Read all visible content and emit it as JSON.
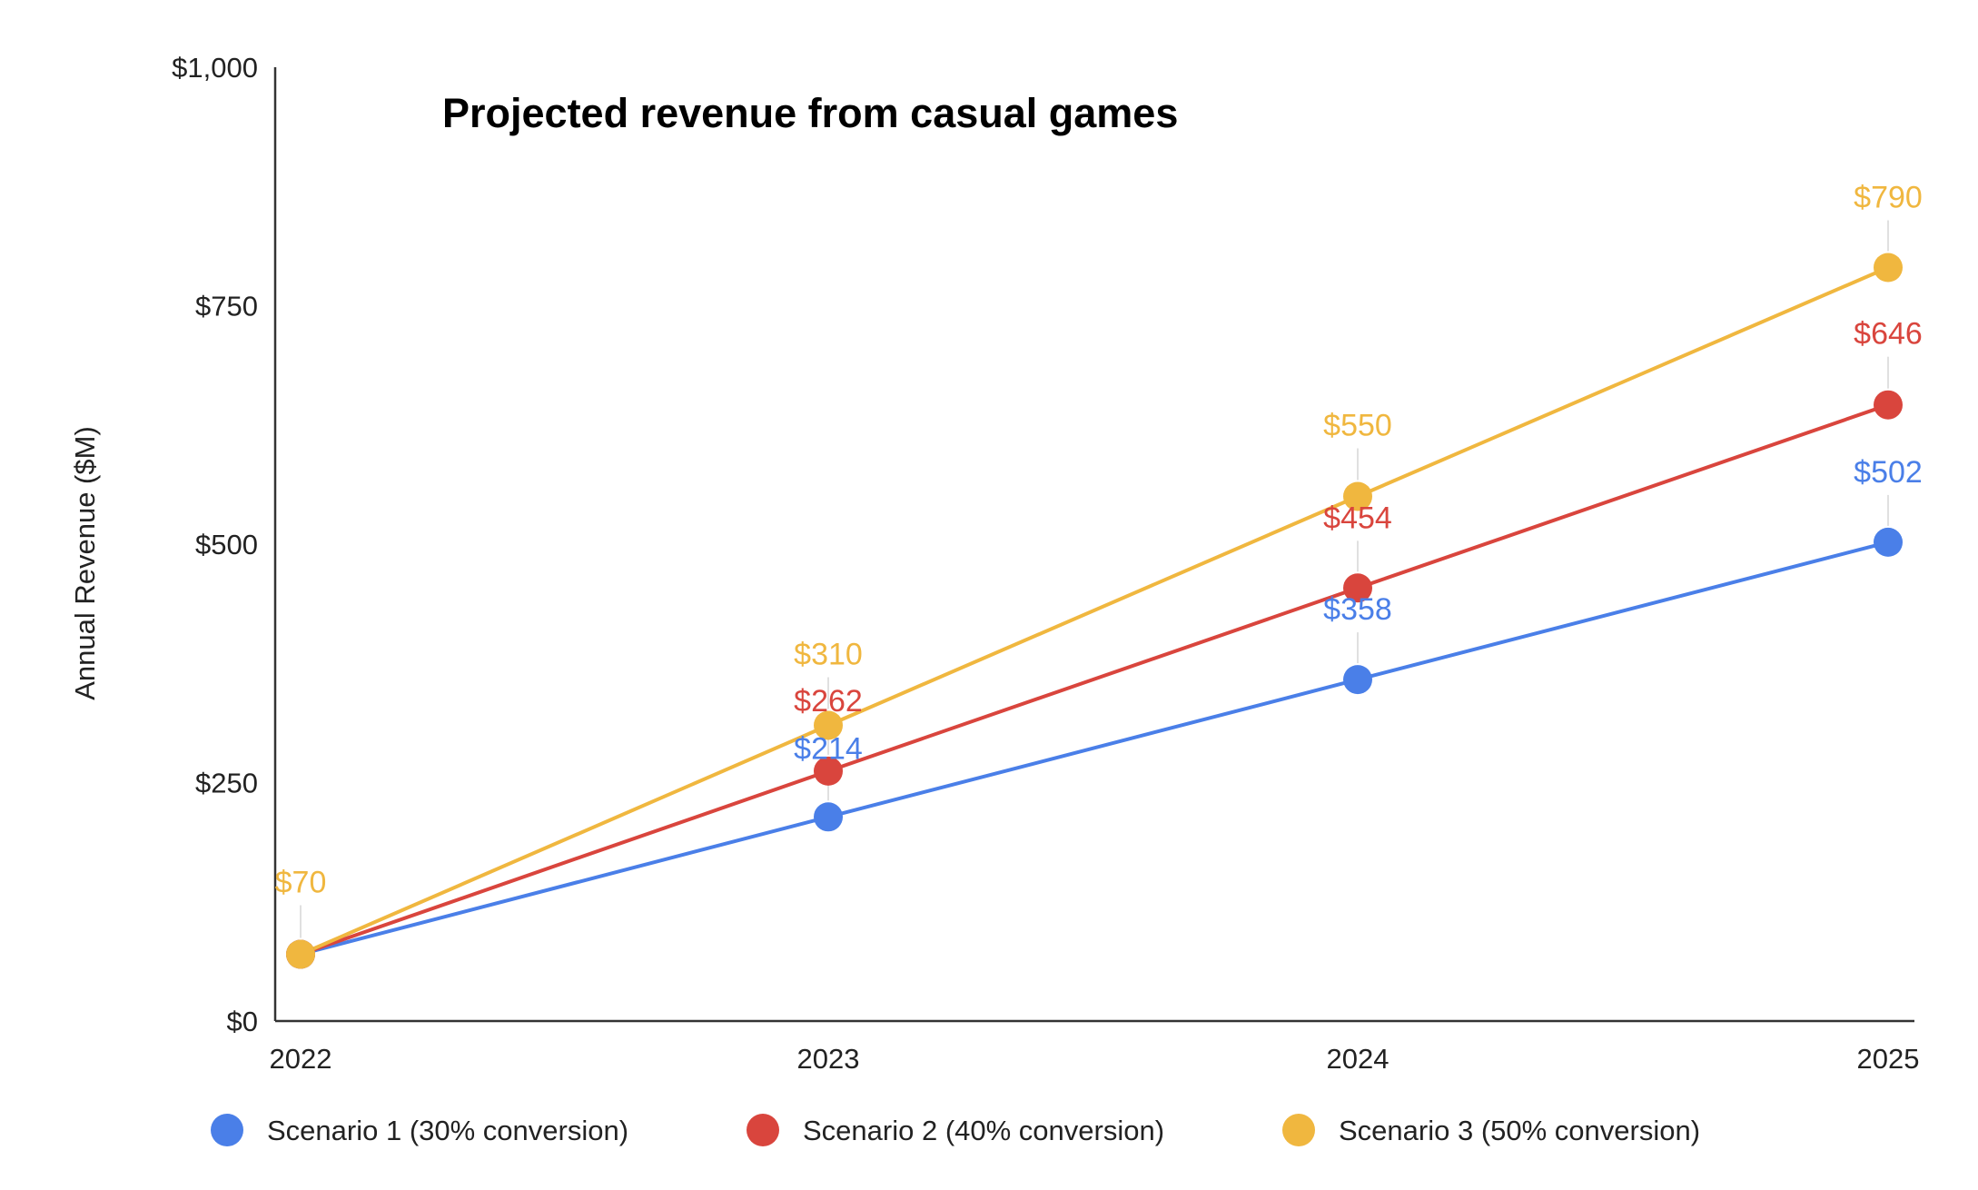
{
  "chart_data": {
    "type": "line",
    "title": "Projected revenue from casual games",
    "xlabel": "",
    "ylabel": "Annual Revenue ($M)",
    "x": [
      "2022",
      "2023",
      "2024",
      "2025"
    ],
    "ylim": [
      0,
      1000
    ],
    "yticks": [
      {
        "value": 0,
        "label": "$0"
      },
      {
        "value": 250,
        "label": "$250"
      },
      {
        "value": 500,
        "label": "$500"
      },
      {
        "value": 750,
        "label": "$750"
      },
      {
        "value": 1000,
        "label": "$1,000"
      }
    ],
    "grid": false,
    "legend_position": "bottom",
    "series": [
      {
        "name": "Scenario 1 (30% conversion)",
        "color": "#4a7fe8",
        "values": [
          70,
          214,
          358,
          502
        ],
        "labels": [
          "",
          "$214",
          "$358",
          "$502"
        ]
      },
      {
        "name": "Scenario 2 (40% conversion)",
        "color": "#d9453d",
        "values": [
          70,
          262,
          454,
          646
        ],
        "labels": [
          "",
          "$262",
          "$454",
          "$646"
        ]
      },
      {
        "name": "Scenario 3 (50% conversion)",
        "color": "#f0b73f",
        "values": [
          70,
          310,
          550,
          790
        ],
        "labels": [
          "$70",
          "$310",
          "$550",
          "$790"
        ]
      }
    ]
  }
}
